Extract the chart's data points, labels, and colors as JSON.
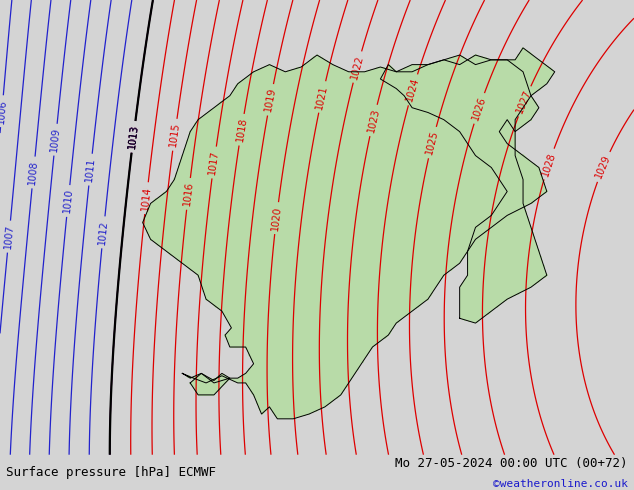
{
  "title_left": "Surface pressure [hPa] ECMWF",
  "title_right": "Mo 27-05-2024 00:00 UTC (00+72)",
  "credit": "©weatheronline.co.uk",
  "bg_color": "#d4d4d4",
  "land_color": "#b8dba8",
  "contour_color_red": "#dd0000",
  "contour_color_black": "#000000",
  "contour_color_blue": "#2222cc",
  "font_size_label": 7,
  "font_size_title": 9,
  "font_size_credit": 8,
  "figwidth": 6.34,
  "figheight": 4.9,
  "dpi": 100,
  "lon_min": -4,
  "lon_max": 36,
  "lat_min": 54.5,
  "lat_max": 73.5
}
